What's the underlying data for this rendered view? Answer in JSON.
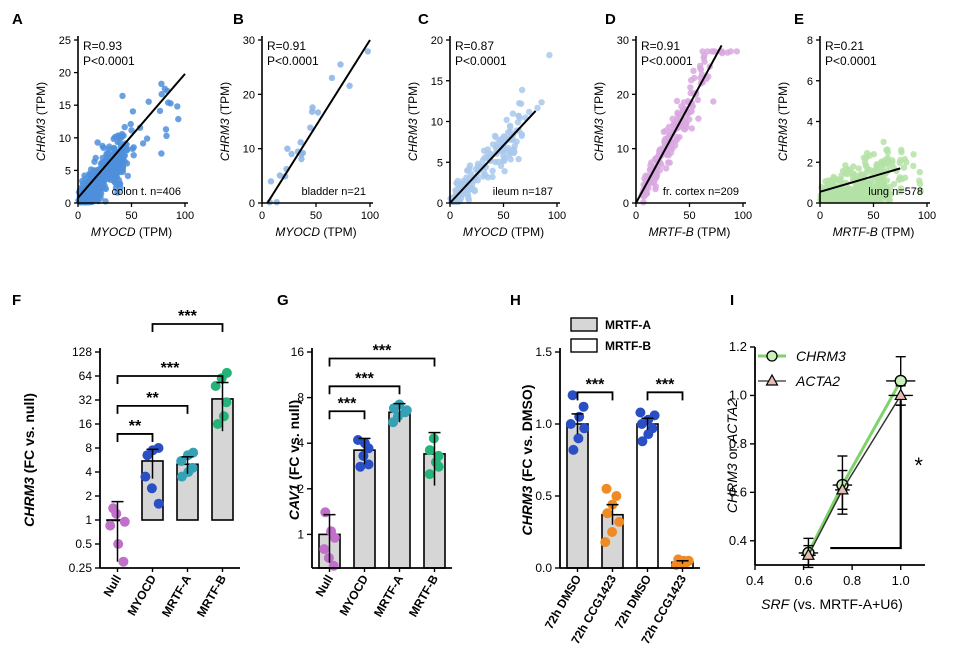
{
  "colors": {
    "colon": "#4f8fdc",
    "bladder": "#8ab4e6",
    "ileum": "#a9c9ec",
    "cortex": "#d9a8e0",
    "lung": "#b4e2a6",
    "null_dot": "#c070c8",
    "myocd_dot": "#2a4fc4",
    "mrtfa_dot": "#34a1b4",
    "mrtfb_dot": "#25b37a",
    "dmso_dot": "#2a4fc4",
    "ccg_dot": "#f08a24",
    "bar_gray": "#d6d6d6",
    "line_green": "#7fd36a"
  },
  "chart_data": [
    {
      "panel": "A",
      "type": "scatter",
      "region": "colon t.",
      "n_label": "colon t. n=406",
      "stats": {
        "r": "R=0.93",
        "p": "P<0.0001"
      },
      "xlabel": "MYOCD",
      "xunit": " (TPM)",
      "ylabel": "CHRM3",
      "yunit": " (TPM)",
      "xlim": [
        0,
        100
      ],
      "ylim": [
        0,
        25
      ],
      "xticks": [
        0,
        50,
        100
      ],
      "yticks": [
        0,
        5,
        10,
        15,
        20,
        25
      ],
      "fit": {
        "x": [
          0,
          100
        ],
        "y": [
          0.8,
          19.8
        ]
      },
      "color_key": "colon",
      "n_points": 406,
      "seed": 11,
      "cluster": [
        0,
        40
      ],
      "slope": 0.19,
      "noise": 2.8
    },
    {
      "panel": "B",
      "type": "scatter",
      "region": "bladder",
      "n_label": "bladder n=21",
      "stats": {
        "r": "R=0.91",
        "p": "P<0.0001"
      },
      "xlabel": "MYOCD",
      "xunit": " (TPM)",
      "ylabel": "CHRM3",
      "yunit": " (TPM)",
      "xlim": [
        0,
        100
      ],
      "ylim": [
        0,
        30
      ],
      "xticks": [
        0,
        50,
        100
      ],
      "yticks": [
        0,
        10,
        20,
        30
      ],
      "fit": {
        "x": [
          5,
          100
        ],
        "y": [
          0,
          30
        ]
      },
      "color_key": "bladder",
      "n_points": 21,
      "seed": 23,
      "cluster": [
        5,
        95
      ],
      "slope": 0.3,
      "noise": 3.5
    },
    {
      "panel": "C",
      "type": "scatter",
      "region": "ileum",
      "n_label": "ileum n=187",
      "stats": {
        "r": "R=0.87",
        "p": "P<0.0001"
      },
      "xlabel": "MYOCD",
      "xunit": " (TPM)",
      "ylabel": "CHRM3",
      "yunit": " (TPM)",
      "xlim": [
        0,
        100
      ],
      "ylim": [
        0,
        20
      ],
      "xticks": [
        0,
        50,
        100
      ],
      "yticks": [
        0,
        5,
        10,
        15,
        20
      ],
      "fit": {
        "x": [
          0,
          80
        ],
        "y": [
          0,
          11.3
        ]
      },
      "color_key": "ileum",
      "n_points": 187,
      "seed": 37,
      "cluster": [
        0,
        60
      ],
      "slope": 0.14,
      "noise": 1.7
    },
    {
      "panel": "D",
      "type": "scatter",
      "region": "fr. cortex",
      "n_label": "fr. cortex n=209",
      "stats": {
        "r": "R=0.91",
        "p": "P<0.0001"
      },
      "xlabel": "MRTF-B",
      "xunit": " (TPM)",
      "ylabel": "CHRM3",
      "yunit": " (TPM)",
      "xlim": [
        0,
        100
      ],
      "ylim": [
        0,
        30
      ],
      "xticks": [
        0,
        50,
        100
      ],
      "yticks": [
        0,
        10,
        20,
        30
      ],
      "fit": {
        "x": [
          0,
          80
        ],
        "y": [
          0,
          29
        ]
      },
      "color_key": "cortex",
      "n_points": 209,
      "seed": 53,
      "cluster": [
        5,
        60
      ],
      "slope": 0.36,
      "noise": 2.6
    },
    {
      "panel": "E",
      "type": "scatter",
      "region": "lung",
      "n_label": "lung n=578",
      "stats": {
        "r": "R=0.21",
        "p": "P<0.0001"
      },
      "xlabel": "MRTF-B",
      "xunit": " (TPM)",
      "ylabel": "CHRM3",
      "yunit": " (TPM)",
      "xlim": [
        0,
        100
      ],
      "ylim": [
        0,
        8
      ],
      "xticks": [
        0,
        50,
        100
      ],
      "yticks": [
        0,
        2,
        4,
        6,
        8
      ],
      "fit": {
        "x": [
          0,
          75
        ],
        "y": [
          0.55,
          1.7
        ]
      },
      "color_key": "lung",
      "n_points": 578,
      "seed": 71,
      "cluster": [
        0,
        60
      ],
      "slope": 0.015,
      "noise": 0.9
    },
    {
      "panel": "F",
      "type": "bar",
      "scale": "log2",
      "ylabel": "CHRM3",
      "yunit": " (FC vs. null)",
      "categories": [
        "Null",
        "MYOCD",
        "MRTF-A",
        "MRTF-B"
      ],
      "values": [
        1.0,
        5.5,
        5.0,
        33
      ],
      "err": [
        0.7,
        2.2,
        1.2,
        20
      ],
      "points": [
        [
          1.4,
          1.2,
          0.95,
          0.85,
          0.5,
          0.3
        ],
        [
          3.5,
          2.5,
          1.6,
          6.5,
          7.5,
          8.0
        ],
        [
          3.5,
          4.0,
          4.5,
          5.5,
          6.5,
          7.0
        ],
        [
          16,
          20,
          30,
          48,
          60,
          70
        ]
      ],
      "dot_keys": [
        "null_dot",
        "myocd_dot",
        "mrtfa_dot",
        "mrtfb_dot"
      ],
      "yticks": [
        0.25,
        0.5,
        1,
        2,
        4,
        8,
        16,
        32,
        64,
        128
      ],
      "ytick_labels": [
        "0.25",
        "0.5",
        "1",
        "2",
        "4",
        "8",
        "16",
        "32",
        "64",
        "128"
      ],
      "ylim": [
        0.25,
        128
      ],
      "brackets": [
        {
          "from": 0,
          "to": 1,
          "label": "**",
          "y": 12
        },
        {
          "from": 0,
          "to": 2,
          "label": "**",
          "y": 27
        },
        {
          "from": 0,
          "to": 3,
          "label": "***",
          "y": 64
        },
        {
          "from": 1,
          "to": 3,
          "label": "***",
          "y": 180
        }
      ]
    },
    {
      "panel": "G",
      "type": "bar",
      "scale": "log2",
      "ylabel": "CAV1",
      "yunit": " (FC vs. null)",
      "categories": [
        "Null",
        "MYOCD",
        "MRTF-A",
        "MRTF-B"
      ],
      "values": [
        1.0,
        3.6,
        6.4,
        3.4
      ],
      "err": [
        0.35,
        0.7,
        0.9,
        1.3
      ],
      "points": [
        [
          1.4,
          1.05,
          0.95,
          0.8,
          0.7,
          0.62
        ],
        [
          2.8,
          3.3,
          3.7,
          4.2,
          4.0,
          2.9
        ],
        [
          5.5,
          6.0,
          6.4,
          6.8,
          7.2,
          6.6
        ],
        [
          2.5,
          3.0,
          3.3,
          3.6,
          4.3,
          2.8
        ]
      ],
      "dot_keys": [
        "null_dot",
        "myocd_dot",
        "mrtfa_dot",
        "mrtfb_dot"
      ],
      "yticks": [
        1,
        2,
        4,
        8,
        16
      ],
      "ytick_labels": [
        "1",
        "2",
        "4",
        "8",
        "16"
      ],
      "ylim": [
        0.6,
        16
      ],
      "brackets": [
        {
          "from": 0,
          "to": 1,
          "label": "***",
          "y": 6.5
        },
        {
          "from": 0,
          "to": 2,
          "label": "***",
          "y": 9.5
        },
        {
          "from": 0,
          "to": 3,
          "label": "***",
          "y": 14.5
        }
      ]
    },
    {
      "panel": "H",
      "type": "bar",
      "scale": "linear",
      "ylabel": "CHRM3",
      "yunit": " (FC vs. DMSO)",
      "categories": [
        "72h DMSO",
        "72h CCG1423",
        "72h DMSO",
        "72h CCG1423"
      ],
      "values": [
        1.0,
        0.37,
        1.0,
        0.04
      ],
      "err": [
        0.07,
        0.07,
        0.04,
        0.01
      ],
      "bar_fills": [
        "bar_gray",
        "bar_gray",
        "white",
        "white"
      ],
      "points": [
        [
          0.82,
          0.9,
          0.97,
          1.0,
          1.05,
          1.12,
          1.2
        ],
        [
          0.18,
          0.25,
          0.32,
          0.38,
          0.44,
          0.5,
          0.55
        ],
        [
          0.88,
          0.93,
          0.97,
          1.0,
          1.03,
          1.06,
          1.08
        ],
        [
          0.02,
          0.03,
          0.04,
          0.04,
          0.05,
          0.05,
          0.06
        ]
      ],
      "dot_keys": [
        "dmso_dot",
        "ccg_dot",
        "dmso_dot",
        "ccg_dot"
      ],
      "yticks": [
        0.0,
        0.5,
        1.0,
        1.5
      ],
      "ytick_labels": [
        "0.0",
        "0.5",
        "1.0",
        "1.5"
      ],
      "ylim": [
        0,
        1.5
      ],
      "legend": [
        {
          "label": "MRTF-A",
          "fill": "bar_gray"
        },
        {
          "label": "MRTF-B",
          "fill": "white"
        }
      ],
      "brackets": [
        {
          "from": 0,
          "to": 1,
          "label": "***",
          "y": 1.22
        },
        {
          "from": 2,
          "to": 3,
          "label": "***",
          "y": 1.22
        }
      ]
    },
    {
      "panel": "I",
      "type": "line",
      "xlabel": "SRF",
      "xunit": " (vs. MRTF-A+U6)",
      "ylabel_parts": [
        "CHRM3",
        " or ",
        "ACTA2"
      ],
      "xlim": [
        0.4,
        1.1
      ],
      "ylim": [
        0.3,
        1.2
      ],
      "xticks": [
        0.4,
        0.6,
        0.8,
        1.0
      ],
      "xtick_labels": [
        "0.4",
        "0.6",
        "0.8",
        "1.0"
      ],
      "yticks": [
        0.4,
        0.6,
        0.8,
        1.0,
        1.2
      ],
      "ytick_labels": [
        "0.4",
        "0.6",
        "0.8",
        "1.0",
        "1.2"
      ],
      "series": [
        {
          "name": "CHRM3",
          "marker": "circle",
          "x": [
            0.62,
            0.76,
            1.0
          ],
          "y": [
            0.35,
            0.63,
            1.06
          ],
          "xerr": [
            0.04,
            0.04,
            0.06
          ],
          "yerr": [
            0.06,
            0.12,
            0.1
          ]
        },
        {
          "name": "ACTA2",
          "marker": "triangle",
          "x": [
            0.62,
            0.76,
            1.0
          ],
          "y": [
            0.34,
            0.61,
            1.0
          ],
          "xerr": [
            0.03,
            0.03,
            0.05
          ],
          "yerr": [
            0.04,
            0.08,
            0.04
          ]
        }
      ],
      "significance": "*"
    }
  ]
}
